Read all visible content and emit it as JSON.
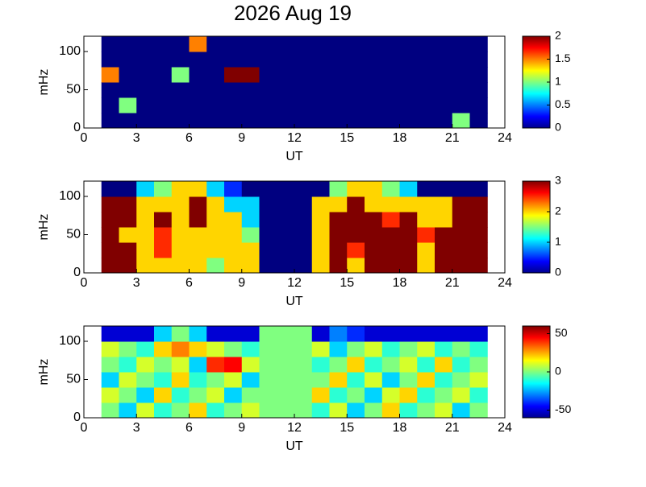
{
  "chart_data": [
    {
      "type": "heatmap",
      "title": "2026 Aug 19",
      "xlabel": "UT",
      "ylabel": "mHz",
      "xlim": [
        0,
        24
      ],
      "xticks": [
        0,
        3,
        6,
        9,
        12,
        15,
        18,
        21,
        24
      ],
      "ylim": [
        0,
        120
      ],
      "yticks": [
        0,
        50,
        100
      ],
      "xbins": [
        1,
        2,
        3,
        4,
        5,
        6,
        7,
        8,
        9,
        10,
        11,
        12,
        13,
        14,
        15,
        16,
        17,
        18,
        19,
        20,
        21,
        22,
        23
      ],
      "ybins": [
        0,
        20,
        40,
        60,
        80,
        100,
        120
      ],
      "clim": [
        0,
        2
      ],
      "cticks": [
        0,
        0.5,
        1,
        1.5,
        2
      ],
      "z": [
        [
          0,
          0,
          0,
          0,
          0,
          0,
          0,
          0,
          0,
          0,
          0,
          0,
          0,
          0,
          0,
          0,
          0,
          0,
          0,
          0,
          1,
          0
        ],
        [
          0,
          1,
          0,
          0,
          0,
          0,
          0,
          0,
          0,
          0,
          0,
          0,
          0,
          0,
          0,
          0,
          0,
          0,
          0,
          0,
          0,
          0
        ],
        [
          0,
          0,
          0,
          0,
          0,
          0,
          0,
          0,
          0,
          0,
          0,
          0,
          0,
          0,
          0,
          0,
          0,
          0,
          0,
          0,
          0,
          0
        ],
        [
          1.5,
          0,
          0,
          0,
          1,
          0,
          0,
          2,
          2,
          0,
          0,
          0,
          0,
          0,
          0,
          0,
          0,
          0,
          0,
          0,
          0,
          0
        ],
        [
          0,
          0,
          0,
          0,
          0,
          0,
          0,
          0,
          0,
          0,
          0,
          0,
          0,
          0,
          0,
          0,
          0,
          0,
          0,
          0,
          0,
          0
        ],
        [
          0,
          0,
          0,
          0,
          0,
          1.5,
          0,
          0,
          0,
          0,
          0,
          0,
          0,
          0,
          0,
          0,
          0,
          0,
          0,
          0,
          0,
          0
        ]
      ]
    },
    {
      "type": "heatmap",
      "xlabel": "UT",
      "ylabel": "mHz",
      "xlim": [
        0,
        24
      ],
      "xticks": [
        0,
        3,
        6,
        9,
        12,
        15,
        18,
        21,
        24
      ],
      "ylim": [
        0,
        120
      ],
      "yticks": [
        0,
        50,
        100
      ],
      "xbins": [
        1,
        2,
        3,
        4,
        5,
        6,
        7,
        8,
        9,
        10,
        11,
        12,
        13,
        14,
        15,
        16,
        17,
        18,
        19,
        20,
        21,
        22,
        23
      ],
      "ybins": [
        0,
        20,
        40,
        60,
        80,
        100,
        120
      ],
      "clim": [
        0,
        3
      ],
      "cticks": [
        0,
        1,
        2,
        3
      ],
      "z": [
        [
          3,
          3,
          2,
          2,
          2,
          2,
          1.5,
          2,
          2,
          0,
          0,
          0,
          2,
          3,
          2,
          3,
          3,
          3,
          2,
          3,
          3,
          3
        ],
        [
          3,
          3,
          2,
          2.5,
          2,
          2,
          2,
          2,
          2,
          0,
          0,
          0,
          2,
          3,
          2.5,
          3,
          3,
          3,
          2,
          3,
          3,
          3
        ],
        [
          3,
          2,
          2,
          2.5,
          2,
          2,
          2,
          2,
          1.5,
          0,
          0,
          0,
          2,
          3,
          3,
          3,
          3,
          3,
          2.5,
          3,
          3,
          3
        ],
        [
          3,
          3,
          2,
          3,
          2,
          3,
          2,
          2,
          1,
          0,
          0,
          0,
          2,
          3,
          3,
          3,
          2.5,
          3,
          2,
          2,
          3,
          3
        ],
        [
          3,
          3,
          2,
          2,
          2,
          3,
          2,
          1,
          1,
          0,
          0,
          0,
          2,
          2,
          3,
          2,
          2,
          2,
          2,
          2,
          3,
          3
        ],
        [
          0,
          0,
          1,
          1.5,
          2,
          2,
          1,
          0.5,
          0,
          0,
          0,
          0,
          0,
          1.5,
          2,
          2,
          1.5,
          1,
          0,
          0,
          0,
          0
        ]
      ]
    },
    {
      "type": "heatmap",
      "xlabel": "UT",
      "ylabel": "mHz",
      "xlim": [
        0,
        24
      ],
      "xticks": [
        0,
        3,
        6,
        9,
        12,
        15,
        18,
        21,
        24
      ],
      "ylim": [
        0,
        120
      ],
      "yticks": [
        0,
        50,
        100
      ],
      "xbins": [
        1,
        2,
        3,
        4,
        5,
        6,
        7,
        8,
        9,
        10,
        11,
        12,
        13,
        14,
        15,
        16,
        17,
        18,
        19,
        20,
        21,
        22,
        23
      ],
      "ybins": [
        0,
        20,
        40,
        60,
        80,
        100,
        120
      ],
      "clim": [
        -60,
        60
      ],
      "cticks": [
        -50,
        0,
        50
      ],
      "z": [
        [
          0,
          -20,
          10,
          -10,
          0,
          20,
          -10,
          0,
          10,
          0,
          0,
          0,
          -10,
          10,
          -20,
          0,
          20,
          -10,
          0,
          10,
          -20,
          0
        ],
        [
          10,
          0,
          -20,
          20,
          -10,
          0,
          10,
          -20,
          0,
          0,
          0,
          0,
          20,
          -10,
          0,
          -20,
          10,
          20,
          -10,
          0,
          10,
          -10
        ],
        [
          -20,
          10,
          0,
          -10,
          20,
          -10,
          0,
          10,
          -20,
          0,
          0,
          0,
          0,
          20,
          -10,
          10,
          -20,
          0,
          20,
          -10,
          0,
          10
        ],
        [
          0,
          -10,
          10,
          0,
          10,
          -20,
          40,
          45,
          10,
          0,
          0,
          0,
          -10,
          0,
          20,
          -10,
          0,
          10,
          -10,
          20,
          -10,
          0
        ],
        [
          10,
          0,
          -10,
          20,
          30,
          20,
          10,
          0,
          -10,
          0,
          0,
          0,
          10,
          -20,
          0,
          10,
          -10,
          0,
          10,
          -10,
          0,
          -10
        ],
        [
          -50,
          -50,
          -50,
          -20,
          0,
          -20,
          -50,
          -50,
          -50,
          0,
          0,
          0,
          -50,
          -30,
          -40,
          -50,
          -50,
          -50,
          -50,
          -50,
          -50,
          -50
        ]
      ]
    }
  ]
}
